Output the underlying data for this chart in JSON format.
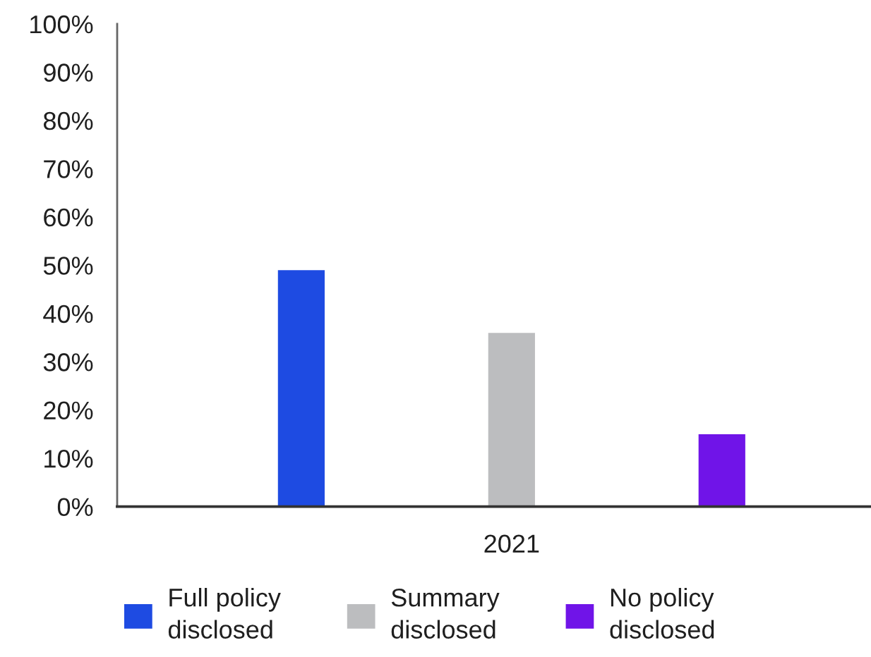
{
  "chart_data": {
    "type": "bar",
    "categories": [
      "2021"
    ],
    "series": [
      {
        "name": "Full policy disclosed",
        "color": "#1e4be2",
        "values": [
          49
        ]
      },
      {
        "name": "Summary disclosed",
        "color": "#bcbdbf",
        "values": [
          36
        ]
      },
      {
        "name": "No policy disclosed",
        "color": "#7014e8",
        "values": [
          15
        ]
      }
    ],
    "ylim": [
      0,
      100
    ],
    "yticks": [
      {
        "value": 0,
        "label": "0%"
      },
      {
        "value": 10,
        "label": "10%"
      },
      {
        "value": 20,
        "label": "20%"
      },
      {
        "value": 30,
        "label": "30%"
      },
      {
        "value": 40,
        "label": "40%"
      },
      {
        "value": 50,
        "label": "50%"
      },
      {
        "value": 60,
        "label": "60%"
      },
      {
        "value": 70,
        "label": "70%"
      },
      {
        "value": 80,
        "label": "80%"
      },
      {
        "value": 90,
        "label": "90%"
      },
      {
        "value": 100,
        "label": "100%"
      }
    ],
    "legend": "bottom"
  }
}
